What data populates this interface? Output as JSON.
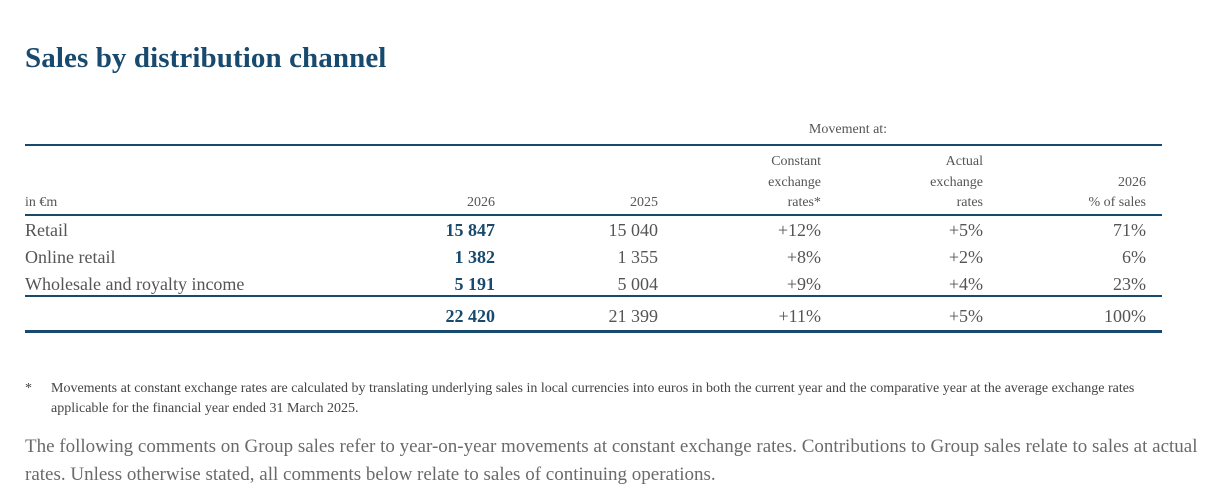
{
  "title": "Sales by distribution channel",
  "table": {
    "movement_label": "Movement at:",
    "headers": {
      "unit": "in €m",
      "col_2026": "2026",
      "col_2025": "2025",
      "constant_line1": "Constant",
      "constant_line2": "exchange",
      "constant_line3": "rates*",
      "actual_line1": "Actual",
      "actual_line2": "exchange",
      "actual_line3": "rates",
      "pct_line1": "2026",
      "pct_line2": "% of sales"
    },
    "rows": [
      {
        "label": "Retail",
        "v2026": "15 847",
        "v2025": "15 040",
        "constant": "+12%",
        "actual": "+5%",
        "pct": "71%"
      },
      {
        "label": "Online retail",
        "v2026": "1 382",
        "v2025": "1 355",
        "constant": "+8%",
        "actual": "+2%",
        "pct": "6%"
      },
      {
        "label": "Wholesale and royalty income",
        "v2026": "5 191",
        "v2025": "5 004",
        "constant": "+9%",
        "actual": "+4%",
        "pct": "23%"
      }
    ],
    "total": {
      "label": "",
      "v2026": "22 420",
      "v2025": "21 399",
      "constant": "+11%",
      "actual": "+5%",
      "pct": "100%"
    }
  },
  "footnote": {
    "marker": "*",
    "text": "Movements at constant exchange rates are calculated by translating underlying sales in local currencies into euros in both the current year and the comparative year at the average exchange rates applicable for the financial year ended 31 March 2025."
  },
  "paragraph": "The following comments on Group sales refer to year-on-year movements at constant exchange rates. Contributions to Group sales relate to sales at actual rates. Unless otherwise stated, all comments below relate to sales of continuing operations."
}
